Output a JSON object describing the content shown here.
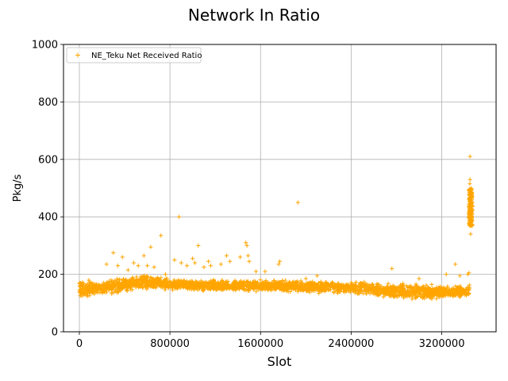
{
  "chart_data": {
    "type": "scatter",
    "title": "Network In Ratio",
    "xlabel": "Slot",
    "ylabel": "Pkg/s",
    "xlim": [
      -140000,
      3680000
    ],
    "ylim": [
      0,
      1000
    ],
    "xticks": [
      0,
      800000,
      1600000,
      2400000,
      3200000
    ],
    "xtick_labels": [
      "0",
      "800000",
      "1600000",
      "2400000",
      "3200000"
    ],
    "yticks": [
      0,
      200,
      400,
      600,
      800,
      1000
    ],
    "ytick_labels": [
      "0",
      "200",
      "400",
      "600",
      "800",
      "1000"
    ],
    "grid": true,
    "legend_position": "top-left",
    "marker": "+",
    "series": [
      {
        "name": "NE_Teku Net Received Ratio",
        "color": "#ffa500",
        "band": [
          [
            0,
            115,
            185
          ],
          [
            100000,
            120,
            180
          ],
          [
            200000,
            125,
            175
          ],
          [
            300000,
            130,
            185
          ],
          [
            400000,
            140,
            190
          ],
          [
            500000,
            145,
            195
          ],
          [
            600000,
            145,
            200
          ],
          [
            700000,
            145,
            195
          ],
          [
            800000,
            145,
            185
          ],
          [
            900000,
            145,
            180
          ],
          [
            1000000,
            145,
            180
          ],
          [
            1100000,
            140,
            180
          ],
          [
            1200000,
            140,
            180
          ],
          [
            1300000,
            140,
            180
          ],
          [
            1400000,
            140,
            180
          ],
          [
            1500000,
            140,
            180
          ],
          [
            1600000,
            140,
            180
          ],
          [
            1700000,
            140,
            178
          ],
          [
            1800000,
            140,
            178
          ],
          [
            1900000,
            140,
            180
          ],
          [
            2000000,
            135,
            178
          ],
          [
            2100000,
            135,
            175
          ],
          [
            2200000,
            135,
            175
          ],
          [
            2300000,
            135,
            175
          ],
          [
            2400000,
            130,
            175
          ],
          [
            2500000,
            130,
            175
          ],
          [
            2600000,
            125,
            172
          ],
          [
            2700000,
            120,
            170
          ],
          [
            2800000,
            115,
            170
          ],
          [
            2900000,
            115,
            170
          ],
          [
            3000000,
            115,
            165
          ],
          [
            3100000,
            110,
            165
          ],
          [
            3200000,
            115,
            165
          ],
          [
            3300000,
            115,
            160
          ],
          [
            3400000,
            120,
            160
          ],
          [
            3450000,
            120,
            170
          ]
        ],
        "spike_cluster": {
          "x_range": [
            3440000,
            3470000
          ],
          "y_range": [
            340,
            530
          ]
        },
        "outliers": [
          [
            240000,
            235
          ],
          [
            300000,
            275
          ],
          [
            340000,
            230
          ],
          [
            380000,
            260
          ],
          [
            430000,
            215
          ],
          [
            480000,
            240
          ],
          [
            520000,
            230
          ],
          [
            570000,
            265
          ],
          [
            600000,
            230
          ],
          [
            630000,
            295
          ],
          [
            660000,
            225
          ],
          [
            720000,
            335
          ],
          [
            760000,
            200
          ],
          [
            840000,
            250
          ],
          [
            880000,
            400
          ],
          [
            900000,
            240
          ],
          [
            950000,
            230
          ],
          [
            1000000,
            255
          ],
          [
            1020000,
            240
          ],
          [
            1050000,
            300
          ],
          [
            1100000,
            225
          ],
          [
            1140000,
            245
          ],
          [
            1160000,
            230
          ],
          [
            1250000,
            235
          ],
          [
            1300000,
            265
          ],
          [
            1330000,
            245
          ],
          [
            1420000,
            260
          ],
          [
            1470000,
            310
          ],
          [
            1480000,
            300
          ],
          [
            1490000,
            265
          ],
          [
            1500000,
            245
          ],
          [
            1560000,
            210
          ],
          [
            1640000,
            210
          ],
          [
            1760000,
            235
          ],
          [
            1770000,
            245
          ],
          [
            1930000,
            450
          ],
          [
            2000000,
            185
          ],
          [
            2100000,
            195
          ],
          [
            2760000,
            220
          ],
          [
            3000000,
            185
          ],
          [
            3240000,
            200
          ],
          [
            3320000,
            235
          ],
          [
            3360000,
            195
          ],
          [
            3430000,
            200
          ],
          [
            3450000,
            610
          ],
          [
            3440000,
            205
          ]
        ]
      }
    ]
  }
}
